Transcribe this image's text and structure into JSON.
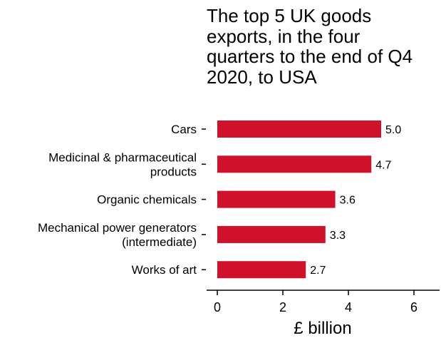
{
  "chart_data": {
    "type": "bar",
    "orientation": "horizontal",
    "title": "The top 5 UK goods exports, in the four quarters to the end of Q4 2020, to USA",
    "title_lines": [
      "The top 5 UK goods",
      "exports, in the four",
      "quarters to the end of Q4",
      "2020, to USA"
    ],
    "categories": [
      [
        "Cars"
      ],
      [
        "Medicinal & pharmaceutical",
        "products"
      ],
      [
        "Organic chemicals"
      ],
      [
        "Mechanical power generators",
        "(intermediate)"
      ],
      [
        "Works of art"
      ]
    ],
    "values": [
      5.0,
      4.7,
      3.6,
      3.3,
      2.7
    ],
    "value_labels": [
      "5.0",
      "4.7",
      "3.6",
      "3.3",
      "2.7"
    ],
    "xlabel": "£ billion",
    "ylabel": "",
    "xlim": [
      0,
      6.5
    ],
    "xticks": [
      0,
      2,
      4,
      6
    ],
    "xtick_labels": [
      "0",
      "2",
      "4",
      "6"
    ],
    "bar_color": "#d0112b",
    "grid": false,
    "legend": "none"
  }
}
